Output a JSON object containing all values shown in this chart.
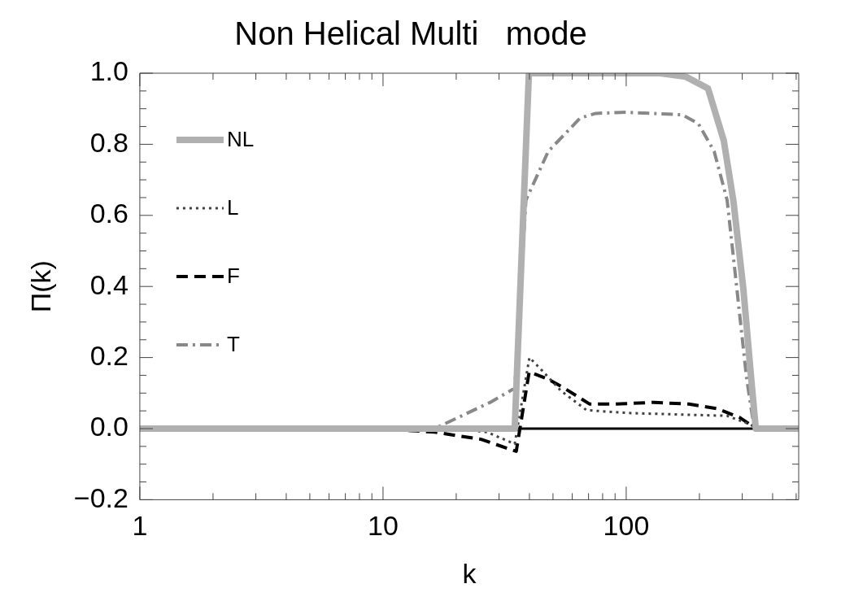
{
  "chart_data": {
    "type": "line",
    "title": "Non Helical Multi   mode",
    "xlabel": "k",
    "ylabel": "Π(k)",
    "log": "x",
    "xlim": [
      1,
      512
    ],
    "ylim": [
      -0.2,
      1.0
    ],
    "xticks": [
      1,
      {
        "value": 2,
        "label": null
      },
      {
        "value": 3,
        "label": null
      },
      {
        "value": 4,
        "label": null
      },
      {
        "value": 5,
        "label": null
      },
      {
        "value": 6,
        "label": null
      },
      {
        "value": 7,
        "label": null
      },
      {
        "value": 8,
        "label": null
      },
      {
        "value": 9,
        "label": null
      },
      10,
      {
        "value": 20,
        "label": null
      },
      {
        "value": 30,
        "label": null
      },
      {
        "value": 40,
        "label": null
      },
      {
        "value": 50,
        "label": null
      },
      {
        "value": 60,
        "label": null
      },
      {
        "value": 70,
        "label": null
      },
      {
        "value": 80,
        "label": null
      },
      {
        "value": 90,
        "label": null
      },
      100,
      {
        "value": 200,
        "label": null
      },
      {
        "value": 300,
        "label": null
      },
      {
        "value": 400,
        "label": null
      },
      {
        "value": 500,
        "label": null
      }
    ],
    "yticks": [
      {
        "value": -0.2,
        "label": "−0.2"
      },
      {
        "value": -0.15,
        "label": null
      },
      {
        "value": -0.1,
        "label": null
      },
      {
        "value": -0.05,
        "label": null
      },
      {
        "value": 0,
        "label": "0.0"
      },
      {
        "value": 0.05,
        "label": null
      },
      {
        "value": 0.1,
        "label": null
      },
      {
        "value": 0.15,
        "label": null
      },
      {
        "value": 0.2,
        "label": "0.2"
      },
      {
        "value": 0.25,
        "label": null
      },
      {
        "value": 0.3,
        "label": null
      },
      {
        "value": 0.35,
        "label": null
      },
      {
        "value": 0.4,
        "label": "0.4"
      },
      {
        "value": 0.45,
        "label": null
      },
      {
        "value": 0.5,
        "label": null
      },
      {
        "value": 0.55,
        "label": null
      },
      {
        "value": 0.6,
        "label": "0.6"
      },
      {
        "value": 0.65,
        "label": null
      },
      {
        "value": 0.7,
        "label": null
      },
      {
        "value": 0.75,
        "label": null
      },
      {
        "value": 0.8,
        "label": "0.8"
      },
      {
        "value": 0.85,
        "label": null
      },
      {
        "value": 0.9,
        "label": null
      },
      {
        "value": 0.95,
        "label": null
      },
      {
        "value": 1.0,
        "label": "1.0"
      }
    ],
    "grid": false,
    "legend": "top left",
    "marker": "none",
    "series": [
      {
        "name": "NL",
        "color": "#b0b0b0",
        "line_style": "solid",
        "x": [
          1,
          34.8,
          39.8,
          100,
          138,
          176,
          217,
          252,
          276,
          303,
          326,
          341,
          512
        ],
        "values": [
          0,
          0,
          1.0,
          1.0,
          1.0,
          0.99,
          0.957,
          0.81,
          0.64,
          0.395,
          0.147,
          0,
          0
        ]
      },
      {
        "name": "L",
        "color": "#404040",
        "line_style": "dotted",
        "x": [
          1,
          20,
          26.8,
          34.8,
          40,
          45,
          54,
          68.7,
          101,
          160,
          260,
          326,
          341,
          512
        ],
        "values": [
          0,
          0,
          -0.01,
          -0.043,
          0.2,
          0.164,
          0.106,
          0.052,
          0.044,
          0.04,
          0.036,
          0.011,
          0,
          0
        ]
      },
      {
        "name": "F",
        "color": "#000000",
        "line_style": "dashed",
        "x": [
          1,
          9.9,
          16.3,
          25.3,
          35.3,
          39.9,
          47.8,
          55.6,
          70.8,
          90,
          129.7,
          181,
          237,
          293,
          331,
          341,
          512
        ],
        "values": [
          0,
          0,
          -0.01,
          -0.03,
          -0.064,
          0.16,
          0.139,
          0.114,
          0.069,
          0.069,
          0.074,
          0.069,
          0.056,
          0.031,
          0.007,
          0,
          0
        ]
      },
      {
        "name": "T",
        "color": "#888888",
        "line_style": "dashdot",
        "x": [
          1,
          16.3,
          27.6,
          34.8,
          38.7,
          47.8,
          64.7,
          75,
          100,
          170,
          198,
          230,
          260,
          285,
          312,
          336,
          512
        ],
        "values": [
          0,
          0,
          0.074,
          0.114,
          0.643,
          0.78,
          0.874,
          0.887,
          0.89,
          0.883,
          0.858,
          0.78,
          0.643,
          0.395,
          0.147,
          0,
          0
        ]
      },
      {
        "color": "#000000",
        "line_style": "solid",
        "x": [
          36,
          336
        ],
        "values": [
          0,
          0
        ]
      }
    ]
  }
}
